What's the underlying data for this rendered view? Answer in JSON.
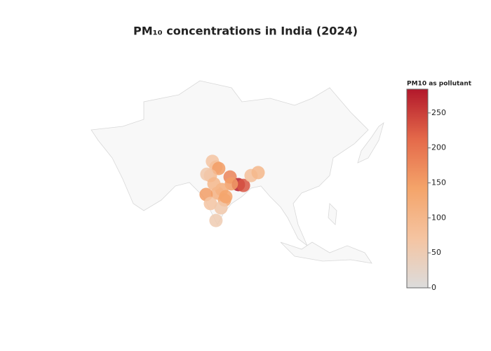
{
  "chart_data": {
    "type": "scattergeo",
    "title": "PM₁₀ concentrations in India (2024)",
    "colorbar_title": "PM10 as pollutant",
    "colorscale": [
      "#dcdcdc",
      "#f5c4a1",
      "#f4a46a",
      "#e4694a",
      "#b2182b"
    ],
    "clim": [
      0,
      284
    ],
    "cticks": [
      0,
      50,
      100,
      150,
      200,
      250
    ],
    "lon": [
      76.6,
      78.0,
      79.1,
      75.8,
      74.4,
      83.6,
      86.9,
      88.9,
      84.1,
      91.9,
      94.7,
      80.3,
      78.6,
      74.1,
      81.4,
      75.8,
      80.0,
      78.0,
      77.2,
      81.9
    ],
    "lat": [
      31.2,
      29.1,
      28.6,
      26.0,
      26.5,
      25.5,
      22.7,
      22.4,
      23.0,
      26.0,
      27.1,
      20.9,
      19.6,
      19.1,
      17.1,
      15.8,
      14.2,
      9.6,
      23.0,
      18.3
    ],
    "values": [
      70,
      80,
      150,
      90,
      60,
      180,
      280,
      230,
      150,
      80,
      100,
      120,
      110,
      150,
      130,
      70,
      60,
      50,
      100,
      140
    ]
  }
}
